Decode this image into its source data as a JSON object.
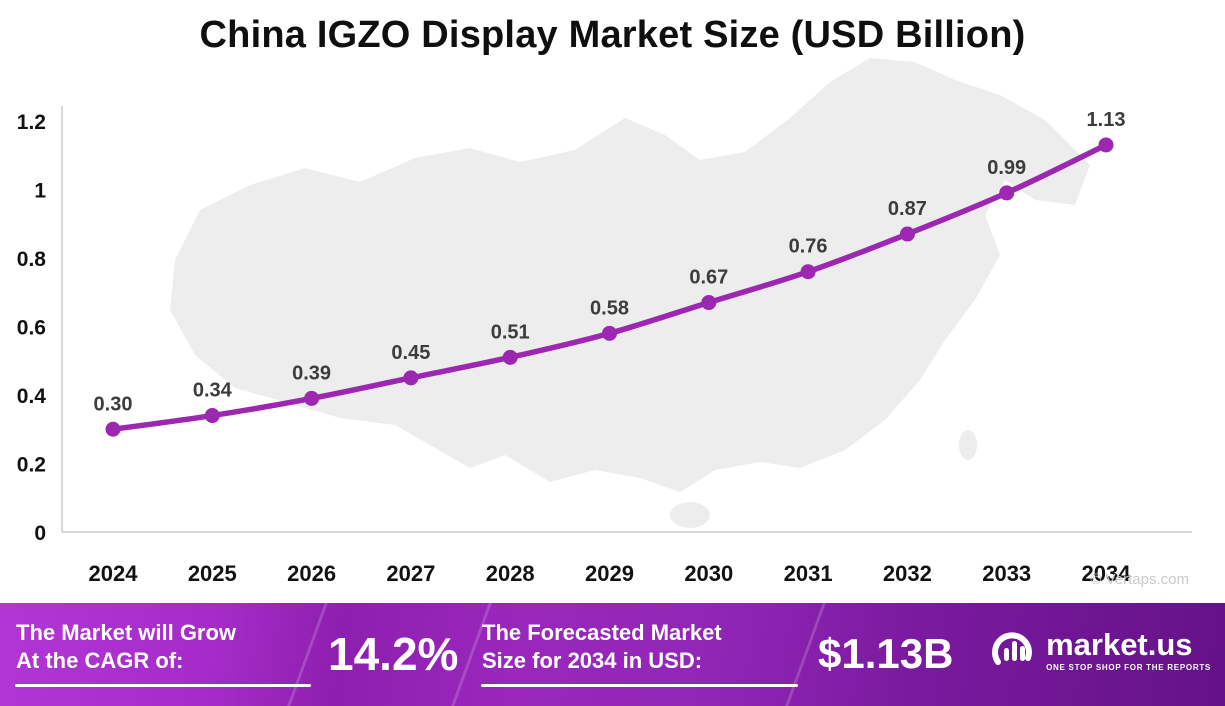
{
  "page": {
    "title": "China IGZO Display Market Size (USD Billion)",
    "watermark": "© Vertaps.com"
  },
  "chart_data": {
    "type": "line",
    "title": "China IGZO Display Market Size (USD Billion)",
    "categories": [
      "2024",
      "2025",
      "2026",
      "2027",
      "2028",
      "2029",
      "2030",
      "2031",
      "2032",
      "2033",
      "2034"
    ],
    "values": [
      0.3,
      0.34,
      0.39,
      0.45,
      0.51,
      0.58,
      0.67,
      0.76,
      0.87,
      0.99,
      1.13
    ],
    "point_labels": [
      "0.30",
      "0.34",
      "0.39",
      "0.45",
      "0.51",
      "0.58",
      "0.67",
      "0.76",
      "0.87",
      "0.99",
      "1.13"
    ],
    "xlabel": "",
    "ylabel": "",
    "ylim": [
      0,
      1.2
    ],
    "yticks": [
      0,
      0.2,
      0.4,
      0.6,
      0.8,
      1,
      1.2
    ],
    "ytick_labels": [
      "0",
      "0.2",
      "0.4",
      "0.6",
      "0.8",
      "1",
      "1.2"
    ],
    "grid": false,
    "legend": "none",
    "line_color": "#9C27B0",
    "background_image": "china-map-silhouette"
  },
  "footer": {
    "cagr": {
      "line1": "The Market will Grow",
      "line2": "At the CAGR of:",
      "value": "14.2%"
    },
    "forecast": {
      "line1": "The Forecasted Market",
      "line2": "Size for 2034 in USD:",
      "value": "$1.13B"
    },
    "brand": {
      "name": "market.us",
      "tagline": "ONE STOP SHOP FOR THE REPORTS"
    }
  },
  "colors": {
    "line": "#9C27B0",
    "banner_left": "#AC2FCE",
    "banner_right": "#5F1184",
    "title_text": "#0F0F0F",
    "point_label_text": "#3C3C3C",
    "axis": "#D8D8D8",
    "map_fill": "#EDEDED"
  }
}
